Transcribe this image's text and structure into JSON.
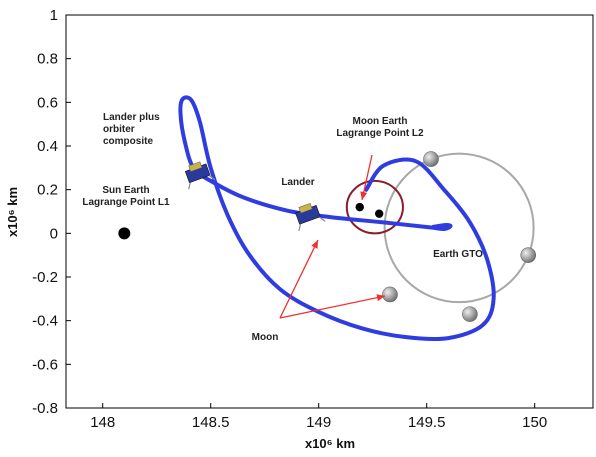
{
  "chart_data": {
    "type": "line",
    "xlabel": "x10⁶ km",
    "ylabel": "x10⁶ km",
    "xlim": [
      147.83,
      150.27
    ],
    "ylim": [
      -0.8,
      1.0
    ],
    "x_ticks": [
      "148",
      "148.5",
      "149",
      "149.5",
      "150"
    ],
    "x_tick_values": [
      148,
      148.5,
      149,
      149.5,
      150
    ],
    "y_ticks": [
      "1",
      "0.8",
      "0.6",
      "0.4",
      "0.2",
      "0",
      "-0.2",
      "-0.4",
      "-0.6",
      "-0.8"
    ],
    "y_tick_values": [
      1,
      0.8,
      0.6,
      0.4,
      0.2,
      0,
      -0.2,
      -0.4,
      -0.6,
      -0.8
    ],
    "grid": false,
    "colors": {
      "trajectory": "#2f3de0",
      "moon_orbit": "#a8a8a8",
      "l2_halo": "#8b1c2c",
      "arrow": "#ee3030",
      "point": "#000000"
    },
    "trajectory": [
      [
        149.53,
        0.03
      ],
      [
        149.59,
        0.038
      ],
      [
        149.61,
        0.033
      ],
      [
        149.58,
        0.02
      ],
      [
        149.51,
        0.028
      ],
      [
        149.3,
        0.05
      ],
      [
        149.05,
        0.075
      ],
      [
        148.85,
        0.105
      ],
      [
        148.65,
        0.165
      ],
      [
        148.5,
        0.24
      ],
      [
        148.42,
        0.3
      ],
      [
        148.38,
        0.42
      ],
      [
        148.36,
        0.55
      ],
      [
        148.37,
        0.615
      ],
      [
        148.41,
        0.61
      ],
      [
        148.45,
        0.51
      ],
      [
        148.5,
        0.3
      ],
      [
        148.58,
        0.08
      ],
      [
        148.68,
        -0.1
      ],
      [
        148.82,
        -0.255
      ],
      [
        149.0,
        -0.36
      ],
      [
        149.2,
        -0.435
      ],
      [
        149.4,
        -0.475
      ],
      [
        149.6,
        -0.48
      ],
      [
        149.76,
        -0.42
      ],
      [
        149.81,
        -0.3
      ],
      [
        149.78,
        -0.12
      ],
      [
        149.7,
        0.05
      ],
      [
        149.58,
        0.2
      ],
      [
        149.45,
        0.33
      ],
      [
        149.3,
        0.31
      ],
      [
        149.22,
        0.2
      ]
    ],
    "moon_orbit": {
      "center": [
        149.65,
        0.025
      ],
      "radius_x": 0.345,
      "radius_y": 0.34
    },
    "l2_halo": {
      "center": [
        149.26,
        0.12
      ],
      "radius_x": 0.13,
      "radius_y": 0.12
    },
    "moons": [
      [
        149.52,
        0.34
      ],
      [
        149.97,
        -0.1
      ],
      [
        149.7,
        -0.37
      ],
      [
        149.33,
        -0.28
      ]
    ],
    "points": [
      {
        "name": "Sun Earth L1",
        "x": 148.1,
        "y": 0.0
      },
      {
        "name": "Moon Earth L2",
        "x": 149.19,
        "y": 0.12
      },
      {
        "name": "Earth",
        "x": 149.28,
        "y": 0.09
      }
    ],
    "spacecraft": [
      [
        148.44,
        0.275
      ],
      [
        148.95,
        0.085
      ]
    ],
    "annotations": [
      {
        "id": "composite",
        "lines": [
          "Lander plus",
          "orbiter",
          "composite"
        ]
      },
      {
        "id": "sel1",
        "lines": [
          "Sun Earth",
          "Lagrange Point L1"
        ]
      },
      {
        "id": "lander",
        "lines": [
          "Lander"
        ]
      },
      {
        "id": "mel2",
        "lines": [
          "Moon Earth",
          "Lagrange Point L2"
        ]
      },
      {
        "id": "gto",
        "lines": [
          "Earth GTO"
        ]
      },
      {
        "id": "moon",
        "lines": [
          "Moon"
        ]
      }
    ]
  }
}
